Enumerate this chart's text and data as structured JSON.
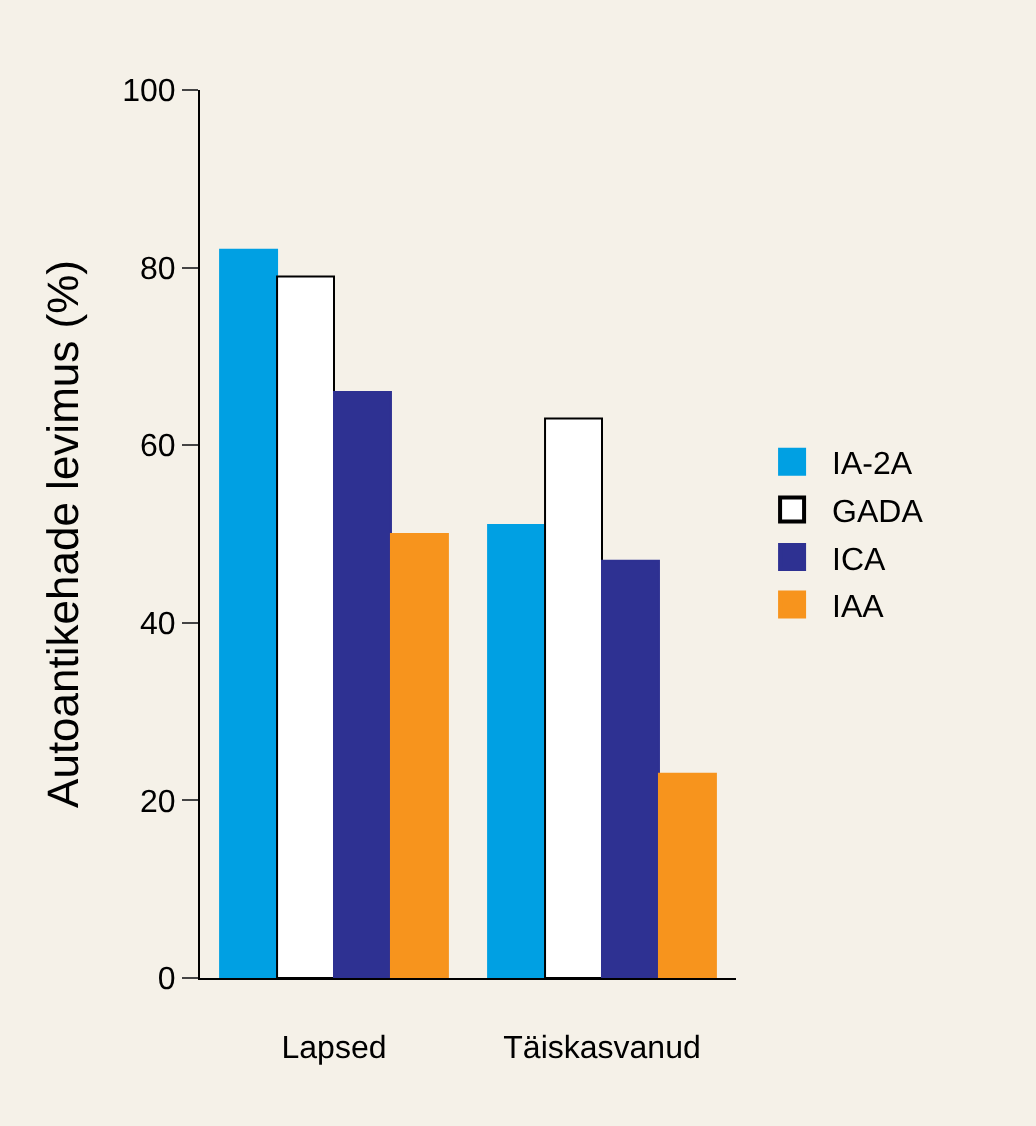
{
  "chart_data": {
    "type": "bar",
    "ylabel": "Autoantikehade levimus (%)",
    "categories": [
      "Lapsed",
      "Täiskasvanud"
    ],
    "series": [
      {
        "name": "IA-2A",
        "color": "#00a0e3",
        "values": [
          82,
          51
        ]
      },
      {
        "name": "GADA",
        "color": "#ffffff",
        "values": [
          79,
          63
        ]
      },
      {
        "name": "ICA",
        "color": "#2e3192",
        "values": [
          66,
          47
        ]
      },
      {
        "name": "IAA",
        "color": "#f7941d",
        "values": [
          50,
          23
        ]
      }
    ],
    "ylim": [
      0,
      100
    ],
    "yticks": [
      0,
      20,
      40,
      60,
      80,
      100
    ],
    "grid": false,
    "legend": "right"
  }
}
